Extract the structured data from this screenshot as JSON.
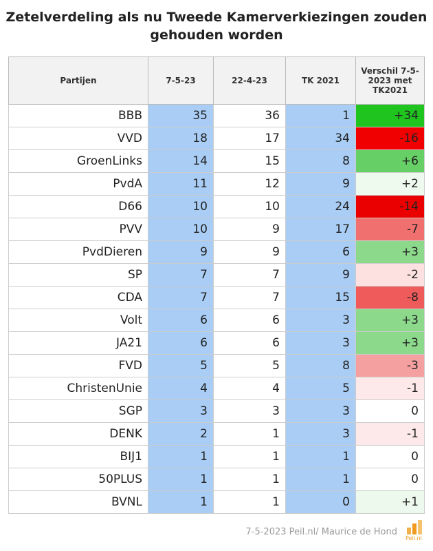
{
  "header": {
    "title": "Zetelverdeling als nu Tweede Kamerverkiezingen zouden gehouden worden"
  },
  "table": {
    "columns": [
      "Partijen",
      "7-5-23",
      "22-4-23",
      "TK 2021",
      "Verschil 7-5-2023 met TK2021"
    ],
    "rows": [
      [
        "BBB",
        35,
        36,
        1,
        "+34"
      ],
      [
        "VVD",
        18,
        17,
        34,
        "-16"
      ],
      [
        "GroenLinks",
        14,
        15,
        8,
        "+6"
      ],
      [
        "PvdA",
        11,
        12,
        9,
        "+2"
      ],
      [
        "D66",
        10,
        10,
        24,
        "-14"
      ],
      [
        "PVV",
        10,
        9,
        17,
        "-7"
      ],
      [
        "PvdDieren",
        9,
        9,
        6,
        "+3"
      ],
      [
        "SP",
        7,
        7,
        9,
        "-2"
      ],
      [
        "CDA",
        7,
        7,
        15,
        "-8"
      ],
      [
        "Volt",
        6,
        6,
        3,
        "+3"
      ],
      [
        "JA21",
        6,
        6,
        3,
        "+3"
      ],
      [
        "FVD",
        5,
        5,
        8,
        "-3"
      ],
      [
        "ChristenUnie",
        4,
        4,
        5,
        "-1"
      ],
      [
        "SGP",
        3,
        3,
        3,
        "0"
      ],
      [
        "DENK",
        2,
        1,
        3,
        "-1"
      ],
      [
        "BIJ1",
        1,
        1,
        1,
        "0"
      ],
      [
        "50PLUS",
        1,
        1,
        1,
        "0"
      ],
      [
        "BVNL",
        1,
        1,
        0,
        "+1"
      ]
    ],
    "diff_colors": [
      "#1fc41f",
      "#f00000",
      "#66d066",
      "#eefaee",
      "#ea0000",
      "#f07070",
      "#8cd98c",
      "#fde0e0",
      "#ef5a5a",
      "#8cd98c",
      "#8cd98c",
      "#f4a0a0",
      "#fde9e9",
      "#ffffff",
      "#fde9e9",
      "#ffffff",
      "#ffffff",
      "#eef9ee"
    ]
  },
  "footer": {
    "source": "7-5-2023 Peil.nl/ Maurice de Hond",
    "logo": "Peil.nl"
  }
}
